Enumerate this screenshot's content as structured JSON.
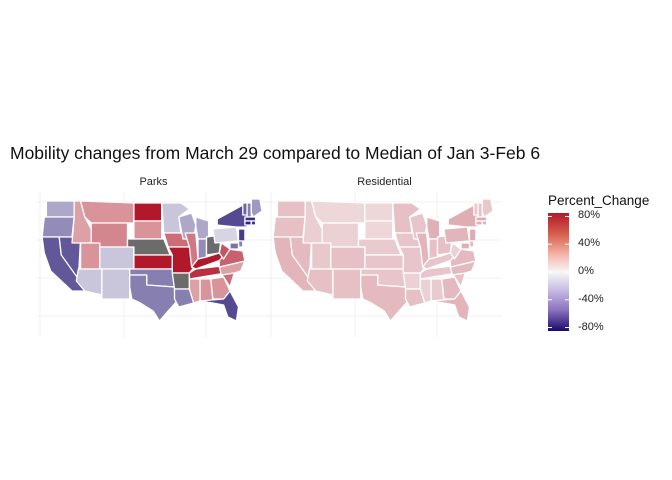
{
  "title": "Mobility changes from March 29 compared to Median of Jan 3-Feb 6",
  "panels": [
    {
      "label": "Parks"
    },
    {
      "label": "Residential"
    }
  ],
  "legend": {
    "title": "Percent_Change",
    "ticks": [
      "80%",
      "40%",
      "0%",
      "-40%",
      "-80%"
    ],
    "tick_values": [
      80,
      40,
      0,
      -40,
      -80
    ],
    "range": [
      -85,
      85
    ],
    "colors": {
      "high": "#b2182b",
      "mid": "#f7f7f7",
      "low": "#1a0a6b",
      "missing": "#6b6b6b"
    }
  },
  "map_data": {
    "Parks": {
      "WA": -25,
      "OR": -35,
      "CA": -55,
      "NV": -55,
      "ID": 30,
      "MT": 35,
      "WY": 40,
      "UT": 35,
      "AZ": -15,
      "CO": -15,
      "NM": -15,
      "ND": 85,
      "SD": 35,
      "NE": null,
      "KS": 85,
      "OK": -40,
      "TX": -40,
      "MN": -15,
      "IA": 50,
      "MO": 85,
      "AR": null,
      "LA": -40,
      "WI": -25,
      "IL": 45,
      "MI": -25,
      "IN": -35,
      "OH": null,
      "KY": 85,
      "TN": 75,
      "MS": 30,
      "AL": 35,
      "GA": 35,
      "FL": -60,
      "SC": 50,
      "NC": 30,
      "VA": 55,
      "WV": 60,
      "PA": -10,
      "NY": -60,
      "VT": -50,
      "NH": -40,
      "ME": -30,
      "MA": -70,
      "CT": -75,
      "RI": -70,
      "NJ": -65,
      "DE": -40,
      "MD": -45
    },
    "Residential": {
      "WA": 18,
      "OR": 18,
      "CA": 22,
      "NV": 20,
      "ID": 13,
      "MT": 10,
      "WY": 12,
      "UT": 15,
      "AZ": 18,
      "CO": 18,
      "NM": 18,
      "ND": 10,
      "SD": 10,
      "NE": 14,
      "KS": 16,
      "OK": 16,
      "TX": 20,
      "MN": 18,
      "IA": 16,
      "MO": 16,
      "AR": 12,
      "LA": 18,
      "WI": 16,
      "IL": 22,
      "MI": 24,
      "IN": 18,
      "OH": 18,
      "KY": 16,
      "TN": 16,
      "MS": 12,
      "AL": 14,
      "GA": 20,
      "FL": 22,
      "SC": 18,
      "NC": 20,
      "VA": 20,
      "WV": 12,
      "PA": 22,
      "NY": 25,
      "VT": 15,
      "NH": 18,
      "ME": 15,
      "MA": 26,
      "CT": 24,
      "RI": 24,
      "NJ": 26,
      "DE": 20,
      "MD": 24
    }
  }
}
